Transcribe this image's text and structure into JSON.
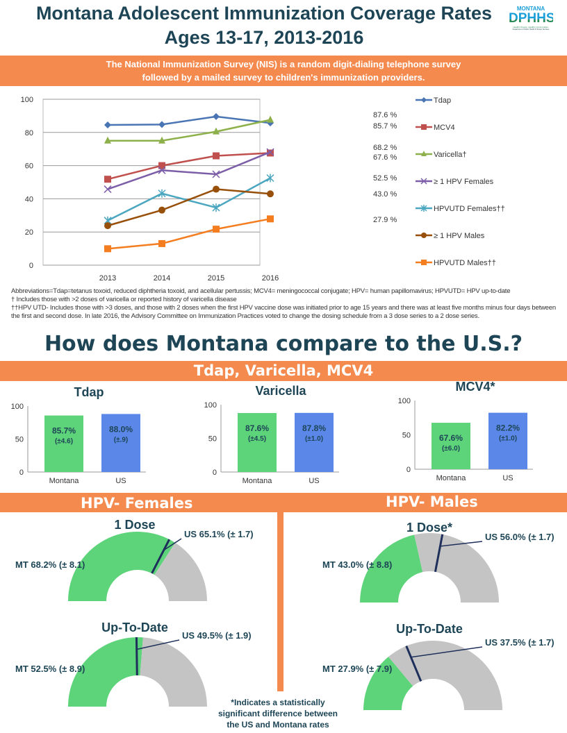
{
  "header": {
    "title_line1": "Montana Adolescent Immunization Coverage Rates",
    "title_line2": "Ages 13-17, 2013-2016",
    "logo": {
      "text_top": "MONTANA",
      "text_main": "DPHHS",
      "tagline": "Healthy People. Healthy Communities.",
      "dept": "Department of Public Health & Human Services"
    }
  },
  "banner": {
    "line1": "The National Immunization Survey (NIS) is a random digit-dialing telephone survey",
    "line2": "followed by a mailed survey to children's immunization providers."
  },
  "colors": {
    "accent": "#f58a4f",
    "title": "#1d4556",
    "montana": "#5dd37a",
    "us": "#5b87e8",
    "gauge_rest": "#c4c4c4",
    "us_marker": "#1d2f5a"
  },
  "chart_data": [
    {
      "type": "line",
      "categories": [
        "2013",
        "2014",
        "2015",
        "2016"
      ],
      "ylim": [
        0,
        100
      ],
      "yticks": [
        "0",
        "20",
        "40",
        "60",
        "80",
        "100"
      ],
      "grid": true,
      "legend": "right",
      "series": [
        {
          "name": "Tdap",
          "values": [
            84.5,
            84.8,
            89.6,
            85.7
          ],
          "color": "#4a75b5",
          "marker": "diamond",
          "end_label": "85.7 %"
        },
        {
          "name": "MCV4",
          "values": [
            51.8,
            60.0,
            65.9,
            67.6
          ],
          "color": "#c0504d",
          "marker": "square",
          "end_label": "67.6 %"
        },
        {
          "name": "Varicella†",
          "values": [
            75.0,
            75.0,
            80.5,
            87.6
          ],
          "color": "#8db04a",
          "marker": "triangle",
          "end_label": "87.6 %"
        },
        {
          "name": "≥ 1 HPV Females",
          "values": [
            45.8,
            57.2,
            54.8,
            68.2
          ],
          "color": "#7b5ea7",
          "marker": "x",
          "end_label": "68.2 %"
        },
        {
          "name": "HPVUTD Females††",
          "values": [
            26.9,
            43.2,
            34.7,
            52.5
          ],
          "color": "#4ba6c0",
          "marker": "star",
          "end_label": "52.5 %"
        },
        {
          "name": "≥ 1 HPV Males",
          "values": [
            23.8,
            33.2,
            45.8,
            43.0
          ],
          "color": "#974f0a",
          "marker": "circle",
          "end_label": "43.0 %"
        },
        {
          "name": "HPVUTD Males††",
          "values": [
            9.9,
            13.0,
            21.7,
            27.9
          ],
          "color": "#f47d20",
          "marker": "square",
          "end_label": "27.9 %"
        }
      ]
    },
    {
      "type": "bar",
      "title": "Tdap",
      "categories": [
        "Montana",
        "US"
      ],
      "values": [
        85.7,
        88.0
      ],
      "labels": [
        "85.7%",
        "88.0%"
      ],
      "ci": [
        "(±4.6)",
        "(±.9)"
      ],
      "ylim": [
        0,
        100
      ],
      "yticks": [
        "0",
        "50",
        "100"
      ]
    },
    {
      "type": "bar",
      "title": "Varicella",
      "categories": [
        "Montana",
        "US"
      ],
      "values": [
        87.6,
        87.8
      ],
      "labels": [
        "87.6%",
        "87.8%"
      ],
      "ci": [
        "(±4.5)",
        "(±1.0)"
      ],
      "ylim": [
        0,
        100
      ],
      "yticks": [
        "0",
        "50",
        "100"
      ]
    },
    {
      "type": "bar",
      "title": "MCV4*",
      "categories": [
        "Montana",
        "US"
      ],
      "values": [
        67.6,
        82.2
      ],
      "labels": [
        "67.6%",
        "82.2%"
      ],
      "ci": [
        "(±6.0)",
        "(±1.0)"
      ],
      "ylim": [
        0,
        100
      ],
      "yticks": [
        "0",
        "50",
        "100"
      ]
    }
  ],
  "footnotes": {
    "abbr": "Abbreviations=Tdap=tetanus toxoid, reduced diphtheria toxoid, and acellular pertussis; MCV4= meningococcal conjugate; HPV= human papillomavirus; HPVUTD= HPV up-to-date",
    "dagger": "† Includes those with >2 doses of varicella or reported history of varicella disease",
    "ddagger": "††HPV UTD- Includes those with >3 doses, and those with 2 doses when the first HPV vaccine dose was initiated prior to age 15 years and there was at least five months minus four days between the first and second dose. In late 2016, the Advisory Committee on Immunization Practices voted to change the dosing schedule from a 3 dose series to a 2 dose series."
  },
  "compare": {
    "heading": "How does Montana compare to the U.S.?",
    "section1": "Tdap, Varicella, MCV4",
    "females": "HPV- Females",
    "males": "HPV- Males"
  },
  "gauges": [
    {
      "title": "1 Dose",
      "mt_value": 68.2,
      "us_value": 65.1,
      "mt_label": "MT 68.2% (± 8.1)",
      "us_label": "US 65.1% (± 1.7)"
    },
    {
      "title": "Up-To-Date",
      "mt_value": 52.5,
      "us_value": 49.5,
      "mt_label": "MT 52.5% (± 8.9)",
      "us_label": "US 49.5% (± 1.9)"
    },
    {
      "title": "1 Dose*",
      "mt_value": 43.0,
      "us_value": 56.0,
      "mt_label": "MT 43.0% (± 8.8)",
      "us_label": "US 56.0% (± 1.7)"
    },
    {
      "title": "Up-To-Date",
      "mt_value": 27.9,
      "us_value": 37.5,
      "mt_label": "MT 27.9% (± 7.9)",
      "us_label": "US 37.5% (± 1.7)"
    }
  ],
  "note": {
    "line1": "*Indicates a statistically",
    "line2": "significant difference between",
    "line3": "the US and Montana rates"
  }
}
